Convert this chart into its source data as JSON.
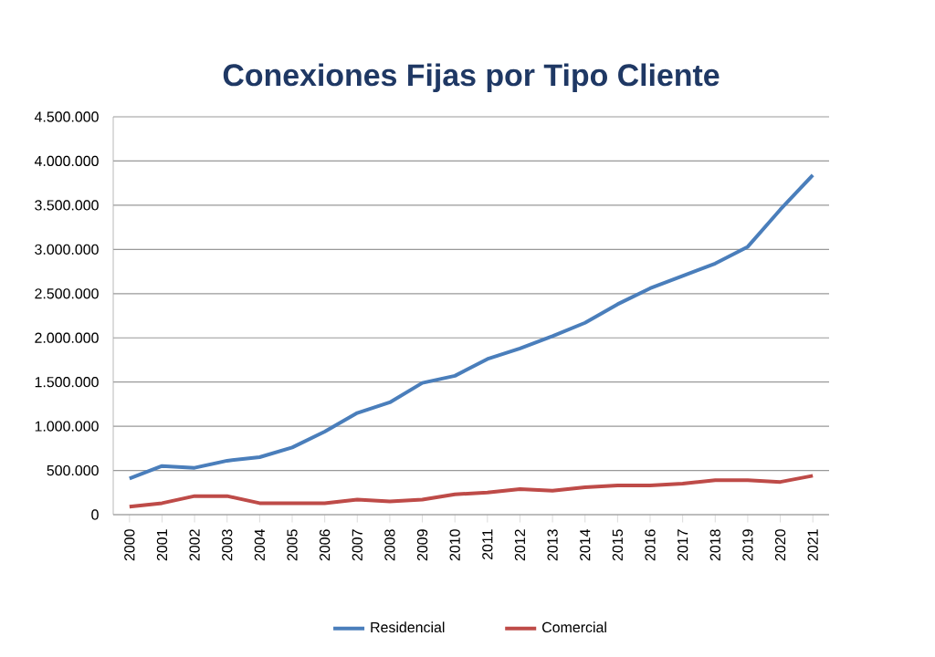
{
  "chart_data": {
    "type": "line",
    "title": "Conexiones Fijas por Tipo Cliente",
    "categories": [
      "2000",
      "2001",
      "2002",
      "2003",
      "2004",
      "2005",
      "2006",
      "2007",
      "2008",
      "2009",
      "2010",
      "2011",
      "2012",
      "2013",
      "2014",
      "2015",
      "2016",
      "2017",
      "2018",
      "2019",
      "2020",
      "2021"
    ],
    "series": [
      {
        "name": "Residencial",
        "color": "#4a7ebb",
        "values": [
          410000,
          550000,
          530000,
          610000,
          650000,
          760000,
          940000,
          1150000,
          1270000,
          1490000,
          1570000,
          1760000,
          1880000,
          2020000,
          2170000,
          2380000,
          2560000,
          2700000,
          2840000,
          3030000,
          3450000,
          3840000
        ]
      },
      {
        "name": "Comercial",
        "color": "#be4b48",
        "values": [
          90000,
          130000,
          210000,
          210000,
          130000,
          130000,
          130000,
          170000,
          150000,
          170000,
          230000,
          250000,
          290000,
          270000,
          310000,
          330000,
          330000,
          350000,
          390000,
          390000,
          370000,
          440000
        ]
      }
    ],
    "ylim": [
      0,
      4500000
    ],
    "yticks": [
      {
        "value": 0,
        "label": "0"
      },
      {
        "value": 500000,
        "label": "500.000"
      },
      {
        "value": 1000000,
        "label": "1.000.000"
      },
      {
        "value": 1500000,
        "label": "1.500.000"
      },
      {
        "value": 2000000,
        "label": "2.000.000"
      },
      {
        "value": 2500000,
        "label": "2.500.000"
      },
      {
        "value": 3000000,
        "label": "3.000.000"
      },
      {
        "value": 3500000,
        "label": "3.500.000"
      },
      {
        "value": 4000000,
        "label": "4.000.000"
      },
      {
        "value": 4500000,
        "label": "4.500.000"
      }
    ],
    "grid": "y",
    "legend": "bottom",
    "marker": "none",
    "line_style": "solid"
  }
}
